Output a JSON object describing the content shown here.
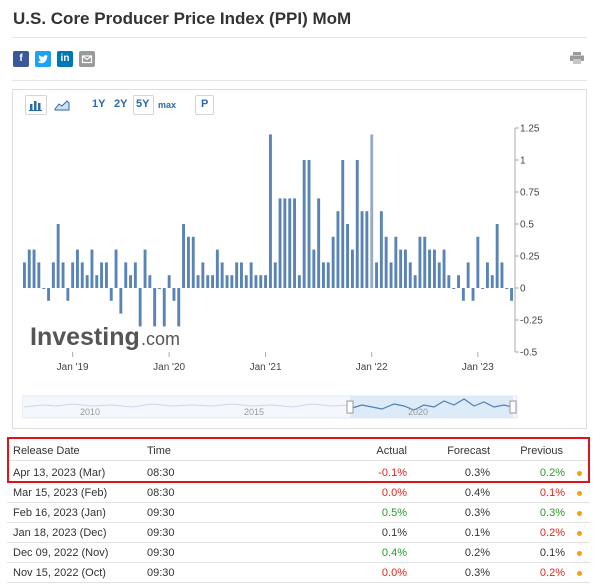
{
  "page": {
    "title": "U.S. Core Producer Price Index (PPI) MoM"
  },
  "share": {
    "facebook": "f",
    "twitter": "t",
    "linkedin": "in"
  },
  "toolbar": {
    "ranges": [
      "1Y",
      "2Y",
      "5Y",
      "max"
    ],
    "active_range": "5Y",
    "print_label": "P"
  },
  "colors": {
    "bar": "#5a84b5",
    "accent": "#2b6aa8",
    "up": "#2a9a2a",
    "down": "#e32420",
    "highlight": "#e1131a"
  },
  "chart_data": {
    "type": "bar",
    "title": "U.S. Core Producer Price Index (PPI) MoM",
    "ylim": [
      -0.5,
      1.25
    ],
    "yticks": [
      "1.25",
      "1",
      "0.75",
      "0.5",
      "0.25",
      "0",
      "-0.25",
      "-0.5"
    ],
    "ytick_values": [
      1.25,
      1,
      0.75,
      0.5,
      0.25,
      0,
      -0.25,
      -0.5
    ],
    "xlabels": [
      "Jan '19",
      "Jan '20",
      "Jan '21",
      "Jan '22",
      "Jan '23"
    ],
    "xlabel_index": [
      10,
      30,
      50,
      72,
      94
    ],
    "values": [
      0.2,
      0.3,
      0.3,
      0.2,
      0.0,
      -0.1,
      0.2,
      0.5,
      0.2,
      -0.1,
      0.2,
      0.3,
      0.2,
      0.1,
      0.3,
      0.1,
      0.2,
      0.2,
      -0.1,
      0.3,
      -0.2,
      0.2,
      0.1,
      0.2,
      -0.3,
      0.3,
      0.1,
      -0.3,
      0.0,
      -0.3,
      0.1,
      -0.1,
      -0.3,
      0.5,
      0.4,
      0.4,
      0.1,
      0.2,
      0.1,
      0.1,
      0.3,
      0.2,
      0.1,
      0.1,
      0.2,
      0.2,
      0.1,
      0.2,
      0.1,
      0.1,
      0.1,
      1.2,
      0.2,
      0.7,
      0.7,
      0.7,
      0.7,
      0.1,
      1.0,
      1.0,
      0.3,
      0.7,
      0.2,
      0.2,
      0.4,
      0.6,
      1.0,
      0.5,
      0.3,
      1.0,
      0.6,
      0.6,
      1.2,
      0.2,
      0.6,
      0.4,
      0.2,
      0.4,
      0.3,
      0.3,
      0.2,
      0.1,
      0.4,
      0.4,
      0.3,
      0.3,
      0.2,
      0.3,
      0.1,
      0.0,
      0.1,
      -0.1,
      0.2,
      -0.1,
      0.4,
      0.0,
      0.2,
      0.1,
      0.5,
      0.2,
      0.0,
      -0.1
    ],
    "watermark": "Investing.com",
    "navigator_labels": [
      "2010",
      "2015",
      "2020"
    ]
  },
  "table": {
    "headers": [
      "Release Date",
      "Time",
      "Actual",
      "Forecast",
      "Previous"
    ],
    "rows": [
      {
        "date": "Apr 13, 2023 (Mar)",
        "time": "08:30",
        "actual": "-0.1%",
        "actual_color": "red",
        "forecast": "0.3%",
        "previous": "0.2%",
        "previous_color": "green"
      },
      {
        "date": "Mar 15, 2023 (Feb)",
        "time": "08:30",
        "actual": "0.0%",
        "actual_color": "red",
        "forecast": "0.4%",
        "previous": "0.1%",
        "previous_color": "red"
      },
      {
        "date": "Feb 16, 2023 (Jan)",
        "time": "09:30",
        "actual": "0.5%",
        "actual_color": "green",
        "forecast": "0.3%",
        "previous": "0.3%",
        "previous_color": "green"
      },
      {
        "date": "Jan 18, 2023 (Dec)",
        "time": "09:30",
        "actual": "0.1%",
        "actual_color": "black",
        "forecast": "0.1%",
        "previous": "0.2%",
        "previous_color": "red"
      },
      {
        "date": "Dec 09, 2022 (Nov)",
        "time": "09:30",
        "actual": "0.4%",
        "actual_color": "green",
        "forecast": "0.2%",
        "previous": "0.1%",
        "previous_color": "black"
      },
      {
        "date": "Nov 15, 2022 (Oct)",
        "time": "09:30",
        "actual": "0.0%",
        "actual_color": "red",
        "forecast": "0.3%",
        "previous": "0.2%",
        "previous_color": "red"
      }
    ]
  }
}
